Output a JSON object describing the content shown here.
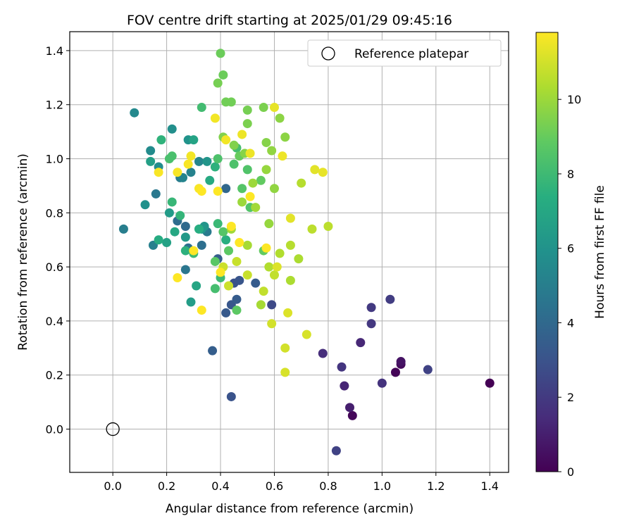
{
  "chart_data": {
    "type": "scatter",
    "title": "FOV centre drift starting at 2025/01/29 09:45:16",
    "xlabel": "Angular distance from reference (arcmin)",
    "ylabel": "Rotation from reference (arcmin)",
    "xlim": [
      -0.16,
      1.47
    ],
    "ylim": [
      -0.16,
      1.47
    ],
    "x_ticks": [
      0.0,
      0.2,
      0.4,
      0.6,
      0.8,
      1.0,
      1.2,
      1.4
    ],
    "y_ticks": [
      0.0,
      0.2,
      0.4,
      0.6,
      0.8,
      1.0,
      1.2,
      1.4
    ],
    "grid": true,
    "legend": {
      "position": "top-right",
      "entries": [
        "Reference platepar"
      ]
    },
    "colorbar": {
      "label": "Hours from first FF file",
      "range": [
        0,
        11.8
      ],
      "ticks": [
        0,
        2,
        4,
        6,
        8,
        10
      ],
      "colormap": "viridis"
    },
    "reference_point": {
      "x": 0.0,
      "y": 0.0
    },
    "points": [
      [
        1.4,
        0.17,
        0.0
      ],
      [
        1.05,
        0.21,
        0.1
      ],
      [
        0.89,
        0.05,
        0.2
      ],
      [
        1.07,
        0.24,
        0.3
      ],
      [
        1.07,
        0.25,
        0.6
      ],
      [
        0.88,
        0.08,
        1.0
      ],
      [
        0.86,
        0.16,
        1.2
      ],
      [
        0.92,
        0.32,
        1.3
      ],
      [
        0.78,
        0.28,
        1.5
      ],
      [
        1.0,
        0.17,
        1.7
      ],
      [
        0.85,
        0.23,
        1.8
      ],
      [
        0.96,
        0.39,
        1.9
      ],
      [
        0.96,
        0.45,
        2.0
      ],
      [
        1.03,
        0.48,
        2.1
      ],
      [
        1.17,
        0.22,
        2.3
      ],
      [
        0.83,
        -0.08,
        2.3
      ],
      [
        0.59,
        0.46,
        2.6
      ],
      [
        0.44,
        0.12,
        3.0
      ],
      [
        0.45,
        0.54,
        3.0
      ],
      [
        0.47,
        0.55,
        3.1
      ],
      [
        0.44,
        0.46,
        3.2
      ],
      [
        0.42,
        0.43,
        3.3
      ],
      [
        0.46,
        0.48,
        3.4
      ],
      [
        0.53,
        0.54,
        3.4
      ],
      [
        0.37,
        0.29,
        3.5
      ],
      [
        0.39,
        0.63,
        3.5
      ],
      [
        0.42,
        0.89,
        3.9
      ],
      [
        0.27,
        0.75,
        4.0
      ],
      [
        0.24,
        0.77,
        4.2
      ],
      [
        0.33,
        0.68,
        4.3
      ],
      [
        0.28,
        0.67,
        4.4
      ],
      [
        0.27,
        0.59,
        4.6
      ],
      [
        0.16,
        0.87,
        4.7
      ],
      [
        0.35,
        0.73,
        4.8
      ],
      [
        0.25,
        0.93,
        4.9
      ],
      [
        0.04,
        0.74,
        5.0
      ],
      [
        0.15,
        0.68,
        5.1
      ],
      [
        0.29,
        0.95,
        5.2
      ],
      [
        0.26,
        0.93,
        5.3
      ],
      [
        0.32,
        0.99,
        5.4
      ],
      [
        0.08,
        1.17,
        5.5
      ],
      [
        0.14,
        1.03,
        5.6
      ],
      [
        0.17,
        0.97,
        5.7
      ],
      [
        0.22,
        1.11,
        5.8
      ],
      [
        0.12,
        0.83,
        5.9
      ],
      [
        0.28,
        1.07,
        6.0
      ],
      [
        0.35,
        0.99,
        6.1
      ],
      [
        0.34,
        0.75,
        6.1
      ],
      [
        0.33,
        0.74,
        6.2
      ],
      [
        0.27,
        0.71,
        6.3
      ],
      [
        0.21,
        0.8,
        6.4
      ],
      [
        0.29,
        0.47,
        6.5
      ],
      [
        0.14,
        0.99,
        6.6
      ],
      [
        0.2,
        0.69,
        6.7
      ],
      [
        0.3,
        1.07,
        6.8
      ],
      [
        0.31,
        0.53,
        6.9
      ],
      [
        0.23,
        0.73,
        7.0
      ],
      [
        0.36,
        0.92,
        7.1
      ],
      [
        0.17,
        0.7,
        7.2
      ],
      [
        0.32,
        0.74,
        7.3
      ],
      [
        0.42,
        0.7,
        7.4
      ],
      [
        0.38,
        0.97,
        7.5
      ],
      [
        0.27,
        0.66,
        7.5
      ],
      [
        0.18,
        1.07,
        7.6
      ],
      [
        0.25,
        0.79,
        7.7
      ],
      [
        0.22,
        0.84,
        7.8
      ],
      [
        0.39,
        0.76,
        7.9
      ],
      [
        0.3,
        0.65,
        8.0
      ],
      [
        0.4,
        0.56,
        8.0
      ],
      [
        0.33,
        1.19,
        8.1
      ],
      [
        0.46,
        1.04,
        8.2
      ],
      [
        0.38,
        0.52,
        8.2
      ],
      [
        0.22,
        1.01,
        8.3
      ],
      [
        0.21,
        1.0,
        8.3
      ],
      [
        0.39,
        1.0,
        8.4
      ],
      [
        0.45,
        0.98,
        8.4
      ],
      [
        0.5,
        0.96,
        8.5
      ],
      [
        0.51,
        0.82,
        8.5
      ],
      [
        0.48,
        0.89,
        8.6
      ],
      [
        0.41,
        0.73,
        8.6
      ],
      [
        0.38,
        0.62,
        8.7
      ],
      [
        0.43,
        0.66,
        8.8
      ],
      [
        0.46,
        0.44,
        8.8
      ],
      [
        0.56,
        0.66,
        8.9
      ],
      [
        0.55,
        0.92,
        8.9
      ],
      [
        0.47,
        1.01,
        9.0
      ],
      [
        0.4,
        1.39,
        9.1
      ],
      [
        0.41,
        1.31,
        9.1
      ],
      [
        0.42,
        1.21,
        9.2
      ],
      [
        0.44,
        1.21,
        9.2
      ],
      [
        0.39,
        1.28,
        9.3
      ],
      [
        0.5,
        1.18,
        9.3
      ],
      [
        0.56,
        1.19,
        9.4
      ],
      [
        0.5,
        1.13,
        9.4
      ],
      [
        0.41,
        1.08,
        9.5
      ],
      [
        0.45,
        1.05,
        9.5
      ],
      [
        0.49,
        1.02,
        9.6
      ],
      [
        0.57,
        1.06,
        9.6
      ],
      [
        0.62,
        1.15,
        9.7
      ],
      [
        0.64,
        1.08,
        9.7
      ],
      [
        0.59,
        1.03,
        9.8
      ],
      [
        0.6,
        0.89,
        9.8
      ],
      [
        0.57,
        0.96,
        9.9
      ],
      [
        0.58,
        0.76,
        9.9
      ],
      [
        0.52,
        0.91,
        10.0
      ],
      [
        0.48,
        0.84,
        10.0
      ],
      [
        0.53,
        0.82,
        10.1
      ],
      [
        0.44,
        0.74,
        10.1
      ],
      [
        0.5,
        0.68,
        10.2
      ],
      [
        0.55,
        0.46,
        10.2
      ],
      [
        0.66,
        0.55,
        10.3
      ],
      [
        0.69,
        0.63,
        10.3
      ],
      [
        0.62,
        0.65,
        10.4
      ],
      [
        0.58,
        0.6,
        10.4
      ],
      [
        0.66,
        0.68,
        10.5
      ],
      [
        0.7,
        0.91,
        10.5
      ],
      [
        0.74,
        0.74,
        10.6
      ],
      [
        0.8,
        0.75,
        10.6
      ],
      [
        0.56,
        0.51,
        10.7
      ],
      [
        0.6,
        0.57,
        10.7
      ],
      [
        0.5,
        0.57,
        10.8
      ],
      [
        0.46,
        0.62,
        10.8
      ],
      [
        0.41,
        0.6,
        10.9
      ],
      [
        0.43,
        0.53,
        10.9
      ],
      [
        0.59,
        0.39,
        11.0
      ],
      [
        0.64,
        0.3,
        11.0
      ],
      [
        0.64,
        0.21,
        11.1
      ],
      [
        0.72,
        0.35,
        11.1
      ],
      [
        0.65,
        0.43,
        11.2
      ],
      [
        0.61,
        0.6,
        11.2
      ],
      [
        0.66,
        0.78,
        11.3
      ],
      [
        0.75,
        0.96,
        11.3
      ],
      [
        0.78,
        0.95,
        11.4
      ],
      [
        0.6,
        1.19,
        11.4
      ],
      [
        0.63,
        1.01,
        11.5
      ],
      [
        0.51,
        1.02,
        11.5
      ],
      [
        0.48,
        1.09,
        11.5
      ],
      [
        0.38,
        1.15,
        11.6
      ],
      [
        0.42,
        1.07,
        11.6
      ],
      [
        0.29,
        1.01,
        11.6
      ],
      [
        0.28,
        0.98,
        11.7
      ],
      [
        0.24,
        0.95,
        11.7
      ],
      [
        0.17,
        0.95,
        11.7
      ],
      [
        0.32,
        0.89,
        11.7
      ],
      [
        0.33,
        0.88,
        11.8
      ],
      [
        0.39,
        0.88,
        11.8
      ],
      [
        0.3,
        0.66,
        11.8
      ],
      [
        0.4,
        0.58,
        11.8
      ],
      [
        0.24,
        0.56,
        11.8
      ],
      [
        0.33,
        0.44,
        11.8
      ],
      [
        0.44,
        0.75,
        11.8
      ],
      [
        0.47,
        0.69,
        11.8
      ],
      [
        0.51,
        0.86,
        11.8
      ],
      [
        0.57,
        0.67,
        11.8
      ]
    ]
  }
}
